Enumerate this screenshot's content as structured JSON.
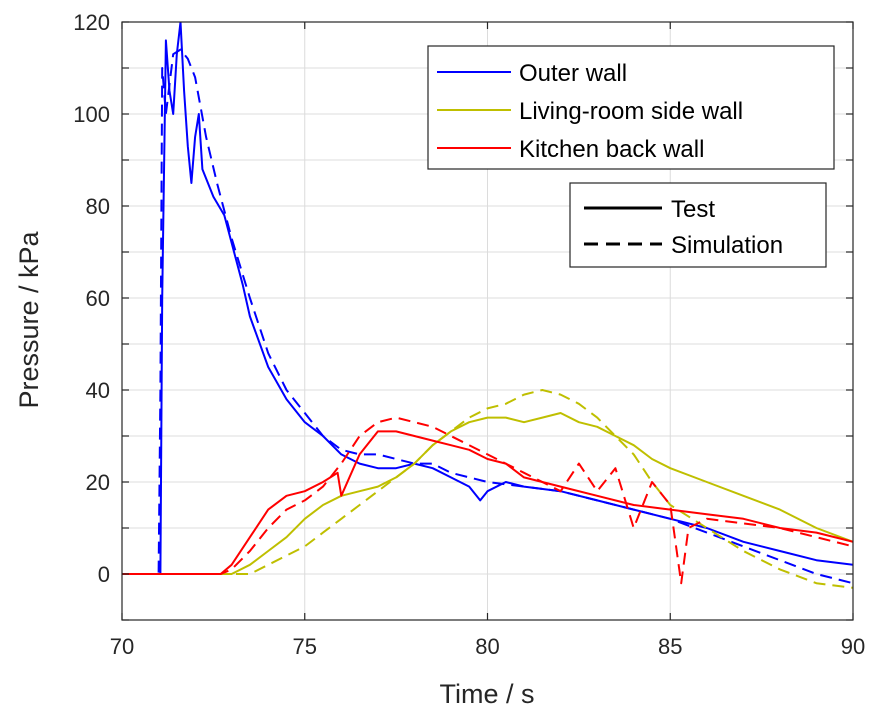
{
  "chart_data": {
    "type": "line",
    "xlabel": "Time / s",
    "ylabel": "Pressure / kPa",
    "xlim": [
      70,
      90
    ],
    "ylim": [
      -10,
      120
    ],
    "xticks": [
      70,
      75,
      80,
      85,
      90
    ],
    "yticks": [
      0,
      20,
      40,
      60,
      80,
      100,
      120
    ],
    "grid": true,
    "legend_series": {
      "placement": "top-right",
      "entries": [
        "Outer wall",
        "Living-room side wall",
        "Kitchen back wall"
      ]
    },
    "legend_styles": {
      "placement": "right, below series legend",
      "entries": [
        {
          "label": "Test",
          "dash": "solid"
        },
        {
          "label": "Simulation",
          "dash": "dashed"
        }
      ]
    },
    "series": [
      {
        "name": "Outer wall",
        "variant": "Test",
        "color": "#0000ff",
        "dash": "solid",
        "x": [
          70,
          71,
          71.05,
          71.1,
          71.2,
          71.3,
          71.4,
          71.5,
          71.6,
          71.7,
          71.8,
          71.9,
          72,
          72.1,
          72.2,
          72.5,
          72.8,
          73,
          73.3,
          73.5,
          74,
          74.5,
          75,
          75.5,
          76,
          76.5,
          77,
          77.5,
          78,
          78.5,
          79,
          79.5,
          79.8,
          80,
          80.5,
          81,
          82,
          83,
          84,
          85,
          86,
          87,
          88,
          89,
          90
        ],
        "y": [
          0,
          0,
          0,
          60,
          116,
          105,
          100,
          113,
          120,
          105,
          93,
          85,
          95,
          100,
          88,
          82,
          78,
          72,
          63,
          56,
          45,
          38,
          33,
          30,
          26,
          24,
          23,
          23,
          24,
          23,
          21,
          19,
          16,
          18,
          20,
          19,
          18,
          16,
          14,
          12,
          10,
          7,
          5,
          3,
          2
        ]
      },
      {
        "name": "Outer wall",
        "variant": "Simulation",
        "color": "#0000ff",
        "dash": "dashed",
        "x": [
          70,
          71,
          71.05,
          71.1,
          71.2,
          71.4,
          71.6,
          71.8,
          72,
          72.3,
          72.6,
          73,
          73.5,
          74,
          74.5,
          75,
          75.5,
          76,
          76.5,
          77,
          77.5,
          78,
          78.5,
          79,
          79.5,
          80,
          81,
          82,
          83,
          84,
          85,
          86,
          87,
          88,
          89,
          90
        ],
        "y": [
          0,
          0,
          40,
          110,
          100,
          113,
          114,
          112,
          108,
          95,
          85,
          73,
          60,
          48,
          40,
          35,
          30,
          27,
          26,
          26,
          25,
          24,
          24,
          22,
          21,
          20,
          19,
          18,
          16,
          14,
          12,
          9,
          6,
          3,
          0,
          -2
        ]
      },
      {
        "name": "Living-room side wall",
        "variant": "Test",
        "color": "#bfbf00",
        "dash": "solid",
        "x": [
          70,
          73,
          73.5,
          74,
          74.5,
          75,
          75.5,
          76,
          76.5,
          77,
          77.5,
          78,
          78.5,
          79,
          79.5,
          80,
          80.5,
          81,
          81.5,
          82,
          82.5,
          83,
          83.5,
          84,
          84.5,
          85,
          86,
          87,
          88,
          89,
          90
        ],
        "y": [
          0,
          0,
          2,
          5,
          8,
          12,
          15,
          17,
          18,
          19,
          21,
          24,
          28,
          31,
          33,
          34,
          34,
          33,
          34,
          35,
          33,
          32,
          30,
          28,
          25,
          23,
          20,
          17,
          14,
          10,
          7
        ]
      },
      {
        "name": "Living-room side wall",
        "variant": "Simulation",
        "color": "#bfbf00",
        "dash": "dashed",
        "x": [
          70,
          73,
          73.5,
          74,
          74.5,
          75,
          75.5,
          76,
          76.5,
          77,
          77.5,
          78,
          78.5,
          79,
          79.5,
          80,
          80.5,
          81,
          81.5,
          82,
          82.5,
          83,
          83.5,
          84,
          84.5,
          85,
          86,
          87,
          88,
          89,
          90
        ],
        "y": [
          0,
          0,
          0,
          2,
          4,
          6,
          9,
          12,
          15,
          18,
          21,
          24,
          28,
          31,
          34,
          36,
          37,
          39,
          40,
          39,
          37,
          34,
          30,
          26,
          20,
          15,
          10,
          5,
          1,
          -2,
          -3
        ]
      },
      {
        "name": "Kitchen back wall",
        "variant": "Test",
        "color": "#ff0000",
        "dash": "solid",
        "x": [
          70,
          72.7,
          73,
          73.5,
          74,
          74.5,
          75,
          75.5,
          75.9,
          76,
          76.5,
          77,
          77.5,
          78,
          78.5,
          79,
          79.5,
          80,
          80.5,
          81,
          81.5,
          82,
          83,
          84,
          85,
          86,
          87,
          88,
          89,
          90
        ],
        "y": [
          0,
          0,
          2,
          8,
          14,
          17,
          18,
          20,
          22,
          17,
          26,
          31,
          31,
          30,
          29,
          28,
          27,
          25,
          24,
          21,
          20,
          19,
          17,
          15,
          14,
          13,
          12,
          10,
          9,
          7
        ]
      },
      {
        "name": "Kitchen back wall",
        "variant": "Simulation",
        "color": "#ff0000",
        "dash": "dashed",
        "x": [
          70,
          72.7,
          73,
          73.5,
          74,
          74.5,
          75,
          75.5,
          76,
          76.5,
          77,
          77.5,
          78,
          78.5,
          79,
          79.5,
          80,
          80.5,
          81,
          81.5,
          82,
          82.5,
          83,
          83.5,
          84,
          84.5,
          85,
          85.3,
          85.5,
          86,
          87,
          88,
          89,
          90
        ],
        "y": [
          0,
          0,
          1,
          5,
          10,
          14,
          16,
          19,
          24,
          30,
          33,
          34,
          33,
          32,
          30,
          28,
          26,
          24,
          22,
          20,
          18,
          24,
          18,
          23,
          10,
          20,
          15,
          -2,
          10,
          12,
          11,
          10,
          8,
          6
        ]
      }
    ]
  }
}
